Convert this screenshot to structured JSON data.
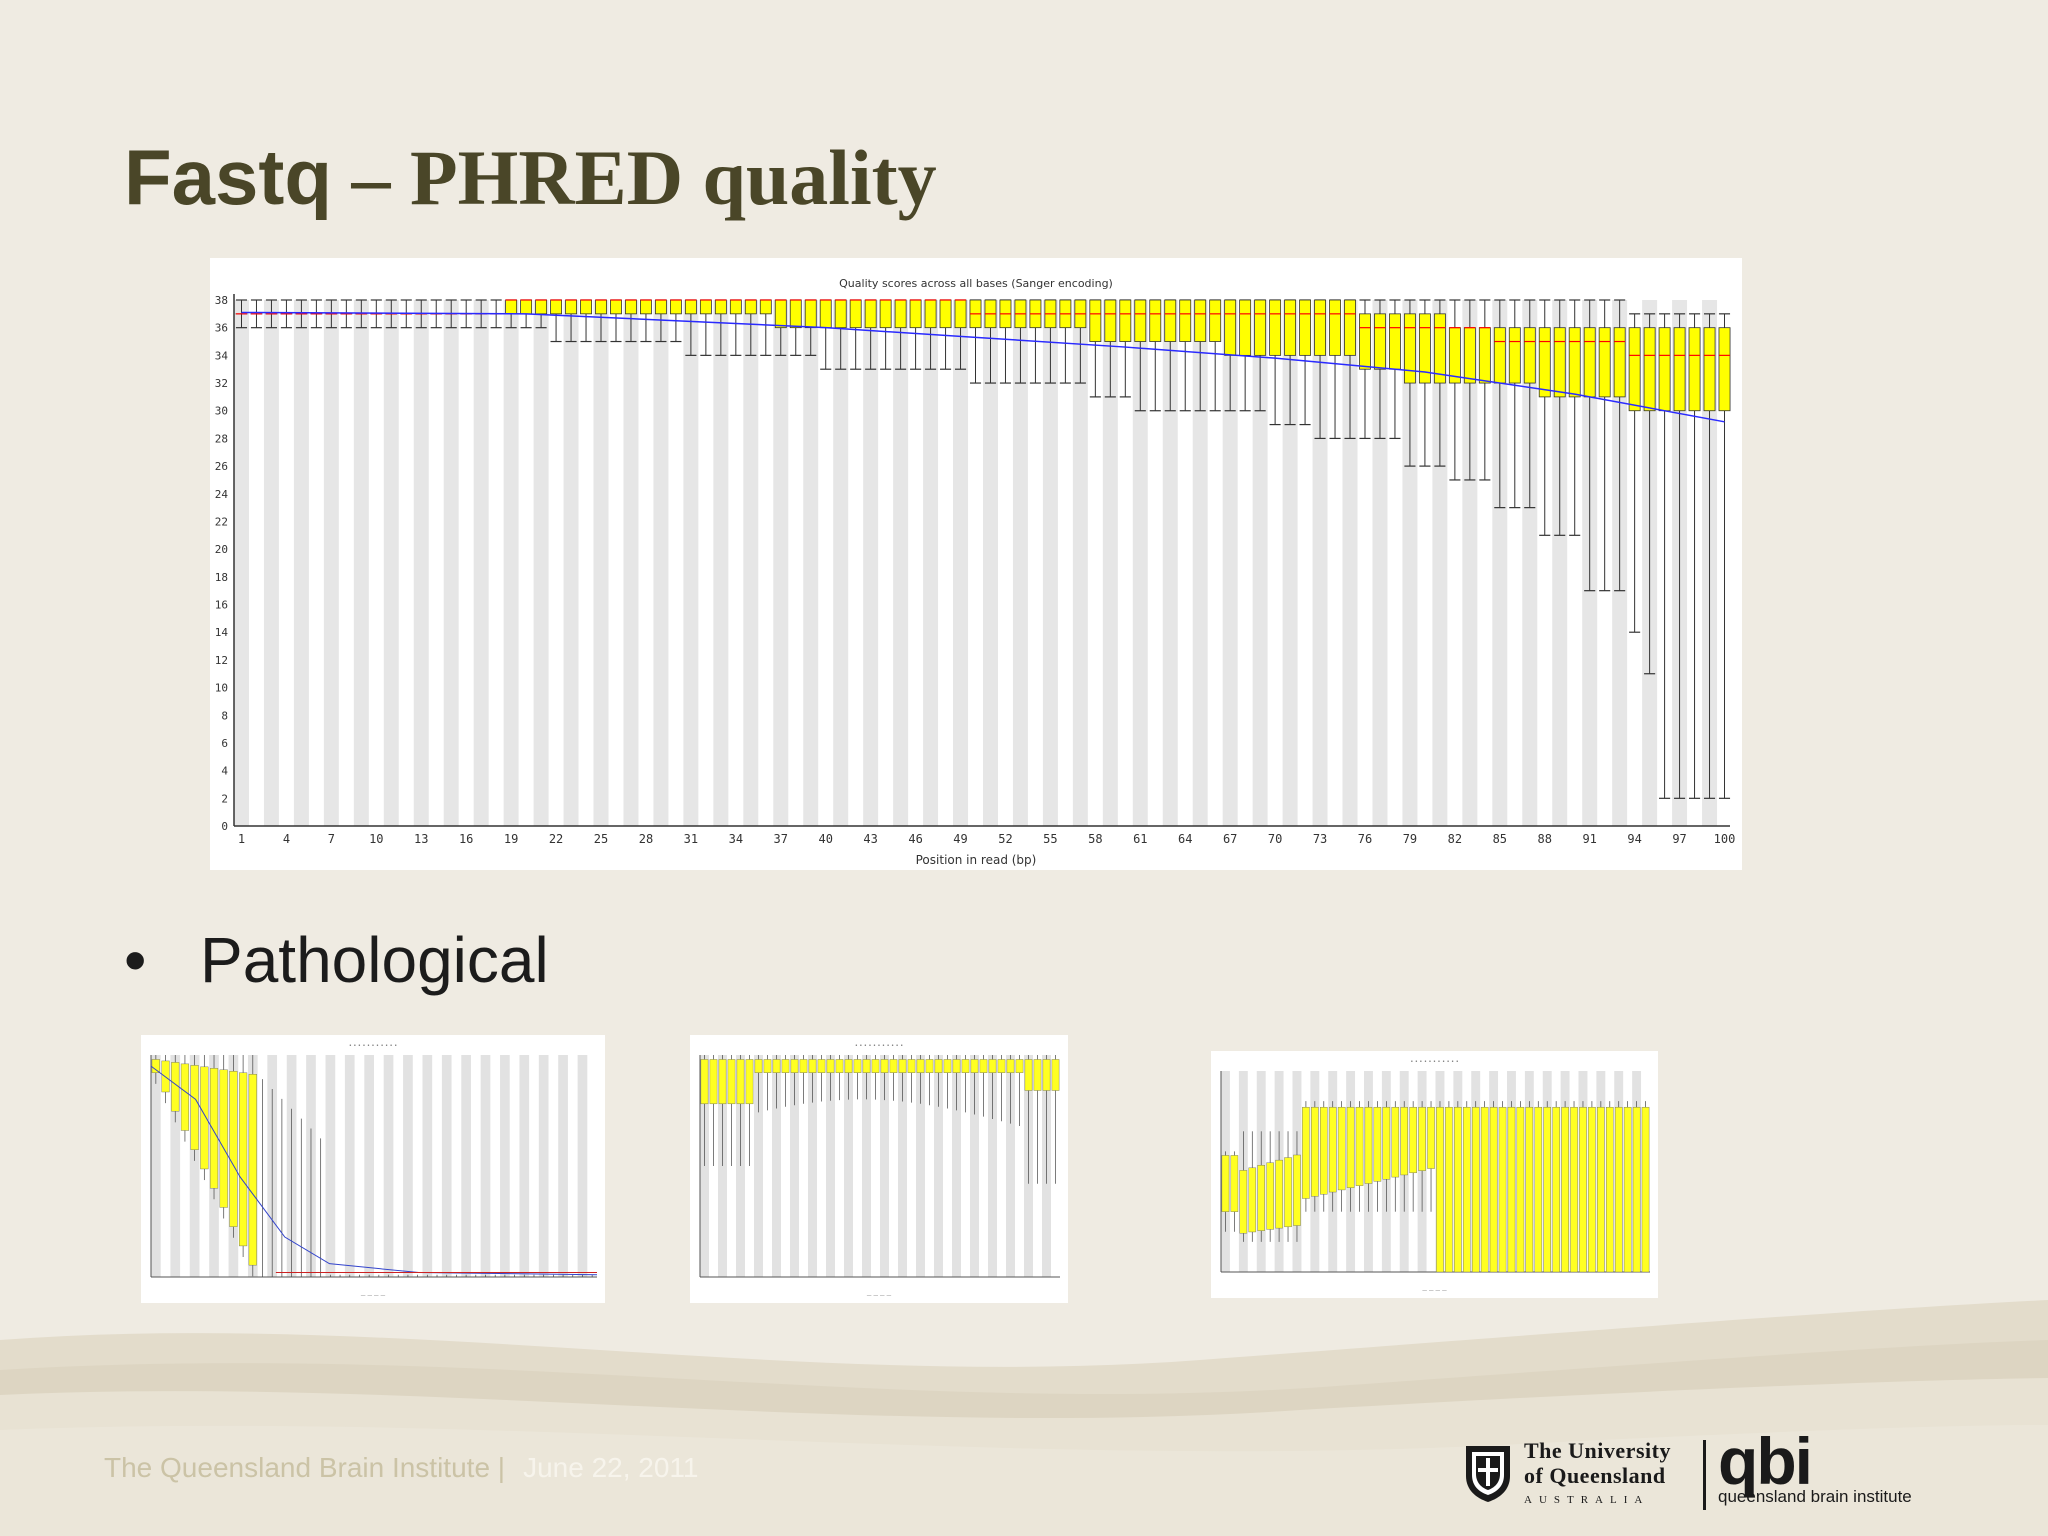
{
  "slide": {
    "title_sans": "Fastq",
    "title_serif": " – PHRED quality",
    "bullet_symbol": "•",
    "bullet_text": "Pathological",
    "footer_org": "The Queensland Brain Institute |",
    "footer_date": "June 22, 2011",
    "colors": {
      "title": "#4a4628",
      "background": "#efebe2",
      "box_fill": "#ffff00",
      "median": "#ff0000",
      "mean_line": "#0000ff"
    }
  },
  "logos": {
    "uq_line1": "The University",
    "uq_line2": "of Queensland",
    "uq_line3": "AUSTRALIA",
    "qbi_big": "qbi",
    "qbi_small": "queensland brain institute"
  },
  "chart_data": {
    "type": "box",
    "title": "Quality scores across all bases (Sanger encoding)",
    "xlabel": "Position in read (bp)",
    "ylabel": "",
    "ylim": [
      0,
      38
    ],
    "yticks": [
      0,
      2,
      4,
      6,
      8,
      10,
      12,
      14,
      16,
      18,
      20,
      22,
      24,
      26,
      28,
      30,
      32,
      34,
      36,
      38
    ],
    "xtick_labels": [
      "1",
      "4",
      "7",
      "10",
      "13",
      "16",
      "19",
      "22",
      "25",
      "28",
      "31",
      "34",
      "37",
      "40",
      "43",
      "46",
      "49",
      "52",
      "55",
      "58",
      "61",
      "64",
      "67",
      "70",
      "73",
      "76",
      "79",
      "82",
      "85",
      "88",
      "91",
      "94",
      "97",
      "100"
    ],
    "positions": 100,
    "box_bands": [
      {
        "from": 1,
        "to": 18,
        "q1": 37,
        "q3": 37,
        "median": 37,
        "low": 36,
        "high": 38
      },
      {
        "from": 19,
        "to": 21,
        "q1": 37,
        "q3": 38,
        "median": 38,
        "low": 36,
        "high": 38
      },
      {
        "from": 22,
        "to": 30,
        "q1": 37,
        "q3": 38,
        "median": 38,
        "low": 35,
        "high": 38
      },
      {
        "from": 31,
        "to": 36,
        "q1": 37,
        "q3": 38,
        "median": 38,
        "low": 34,
        "high": 38
      },
      {
        "from": 37,
        "to": 39,
        "q1": 36,
        "q3": 38,
        "median": 38,
        "low": 34,
        "high": 38
      },
      {
        "from": 40,
        "to": 49,
        "q1": 36,
        "q3": 38,
        "median": 38,
        "low": 33,
        "high": 38
      },
      {
        "from": 50,
        "to": 57,
        "q1": 36,
        "q3": 38,
        "median": 37,
        "low": 32,
        "high": 38
      },
      {
        "from": 58,
        "to": 60,
        "q1": 35,
        "q3": 38,
        "median": 37,
        "low": 31,
        "high": 38
      },
      {
        "from": 61,
        "to": 66,
        "q1": 35,
        "q3": 38,
        "median": 37,
        "low": 30,
        "high": 38
      },
      {
        "from": 67,
        "to": 69,
        "q1": 34,
        "q3": 38,
        "median": 37,
        "low": 30,
        "high": 38
      },
      {
        "from": 70,
        "to": 72,
        "q1": 34,
        "q3": 38,
        "median": 37,
        "low": 29,
        "high": 38
      },
      {
        "from": 73,
        "to": 75,
        "q1": 34,
        "q3": 38,
        "median": 37,
        "low": 28,
        "high": 38
      },
      {
        "from": 76,
        "to": 78,
        "q1": 33,
        "q3": 37,
        "median": 36,
        "low": 28,
        "high": 38
      },
      {
        "from": 79,
        "to": 81,
        "q1": 32,
        "q3": 37,
        "median": 36,
        "low": 26,
        "high": 38
      },
      {
        "from": 82,
        "to": 84,
        "q1": 32,
        "q3": 36,
        "median": 36,
        "low": 25,
        "high": 38
      },
      {
        "from": 85,
        "to": 87,
        "q1": 32,
        "q3": 36,
        "median": 35,
        "low": 23,
        "high": 38
      },
      {
        "from": 88,
        "to": 90,
        "q1": 31,
        "q3": 36,
        "median": 35,
        "low": 21,
        "high": 38
      },
      {
        "from": 91,
        "to": 93,
        "q1": 31,
        "q3": 36,
        "median": 35,
        "low": 17,
        "high": 38
      },
      {
        "from": 94,
        "to": 94,
        "q1": 30,
        "q3": 36,
        "median": 34,
        "low": 14,
        "high": 37
      },
      {
        "from": 95,
        "to": 95,
        "q1": 30,
        "q3": 36,
        "median": 34,
        "low": 11,
        "high": 37
      },
      {
        "from": 96,
        "to": 100,
        "q1": 30,
        "q3": 36,
        "median": 34,
        "low": 2,
        "high": 37
      }
    ],
    "mean_line": [
      {
        "x": 1,
        "y": 37.1
      },
      {
        "x": 20,
        "y": 37.0
      },
      {
        "x": 30,
        "y": 36.5
      },
      {
        "x": 40,
        "y": 36.0
      },
      {
        "x": 50,
        "y": 35.3
      },
      {
        "x": 60,
        "y": 34.6
      },
      {
        "x": 70,
        "y": 33.8
      },
      {
        "x": 80,
        "y": 32.8
      },
      {
        "x": 90,
        "y": 31.2
      },
      {
        "x": 100,
        "y": 29.2
      }
    ]
  },
  "thumbnails": [
    {
      "label": "Pathological example 1"
    },
    {
      "label": "Pathological example 2"
    },
    {
      "label": "Pathological example 3"
    }
  ]
}
